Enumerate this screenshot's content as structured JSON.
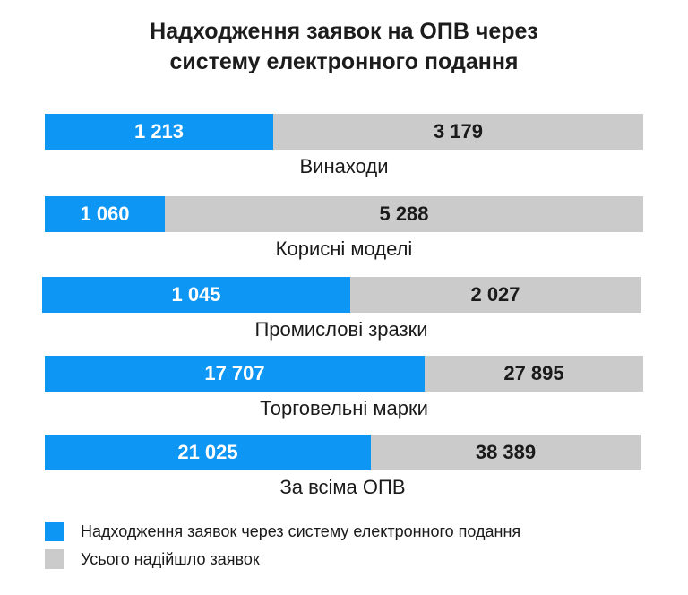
{
  "chart_data": {
    "type": "bar",
    "title": "Надходження заявок на ОПВ через системy електронного подання",
    "title_lines": [
      "Надходження заявок на ОПВ через",
      "систему електронного подання"
    ],
    "categories": [
      "Винаходи",
      "Корисні моделі",
      "Промислові зразки",
      "Торговельні марки",
      "За всіма ОПВ"
    ],
    "series": [
      {
        "name": "Надходження заявок через систему електронного подання",
        "color": "#0e96f5",
        "values": [
          1213,
          1060,
          1045,
          17707,
          21025
        ],
        "labels": [
          "1 213",
          "1 060",
          "1 045",
          "17 707",
          "21 025"
        ]
      },
      {
        "name": "Усього надійшло заявок",
        "color": "#cbcbcb",
        "values": [
          3179,
          5288,
          2027,
          27895,
          38389
        ],
        "labels": [
          "3 179",
          "5 288",
          "2 027",
          "27 895",
          "38 389"
        ]
      }
    ],
    "legend_position": "bottom-left",
    "grid": false
  }
}
